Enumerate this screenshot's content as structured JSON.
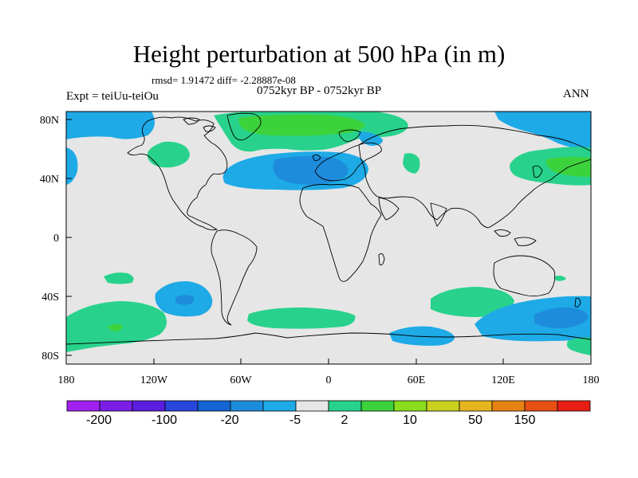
{
  "title": "Height perturbation at 500 hPa (in m)",
  "rmsd_line": "rmsd= 1.91472 diff= -2.28887e-08",
  "period_line": "0752kyr BP - 0752kyr BP",
  "expt_line": "Expt = teiUu-teiOu",
  "season": "ANN",
  "map": {
    "projection": "cylindrical equidistant",
    "lon_range": [
      -180,
      180
    ],
    "lat_range": [
      -90,
      90
    ],
    "background_color": "#e6e6e6",
    "lon_ticks": [
      "180",
      "120W",
      "60W",
      "0",
      "60E",
      "120E",
      "180"
    ],
    "lat_ticks": [
      "80N",
      "40N",
      "0",
      "40S",
      "80S"
    ]
  },
  "colorbar": {
    "colors": [
      "#a020f0",
      "#7a1ee6",
      "#5a1ee0",
      "#2646dc",
      "#1464d2",
      "#1e8cdc",
      "#1eaae6",
      "#e6e6e6",
      "#28d28c",
      "#3cd23c",
      "#8cdc1e",
      "#c8d21e",
      "#e6b41e",
      "#e68214",
      "#e65014",
      "#e61e14"
    ],
    "labels": [
      "-200",
      "-100",
      "-20",
      "-5",
      "2",
      "10",
      "50",
      "150"
    ]
  },
  "anomaly_regions": [
    {
      "sign": "negative",
      "level": "light-blue",
      "lon": -180,
      "lat": 82
    },
    {
      "sign": "positive",
      "level": "green",
      "lon": -5,
      "lat": 75
    },
    {
      "sign": "negative",
      "level": "blue",
      "lon": -10,
      "lat": 45
    },
    {
      "sign": "positive",
      "level": "green",
      "lon": 155,
      "lat": 48
    },
    {
      "sign": "negative",
      "level": "blue",
      "lon": -95,
      "lat": -43
    },
    {
      "sign": "positive",
      "level": "green",
      "lon": -145,
      "lat": -63
    },
    {
      "sign": "positive",
      "level": "green",
      "lon": 80,
      "lat": -47
    },
    {
      "sign": "negative",
      "level": "blue",
      "lon": 160,
      "lat": -55
    }
  ]
}
